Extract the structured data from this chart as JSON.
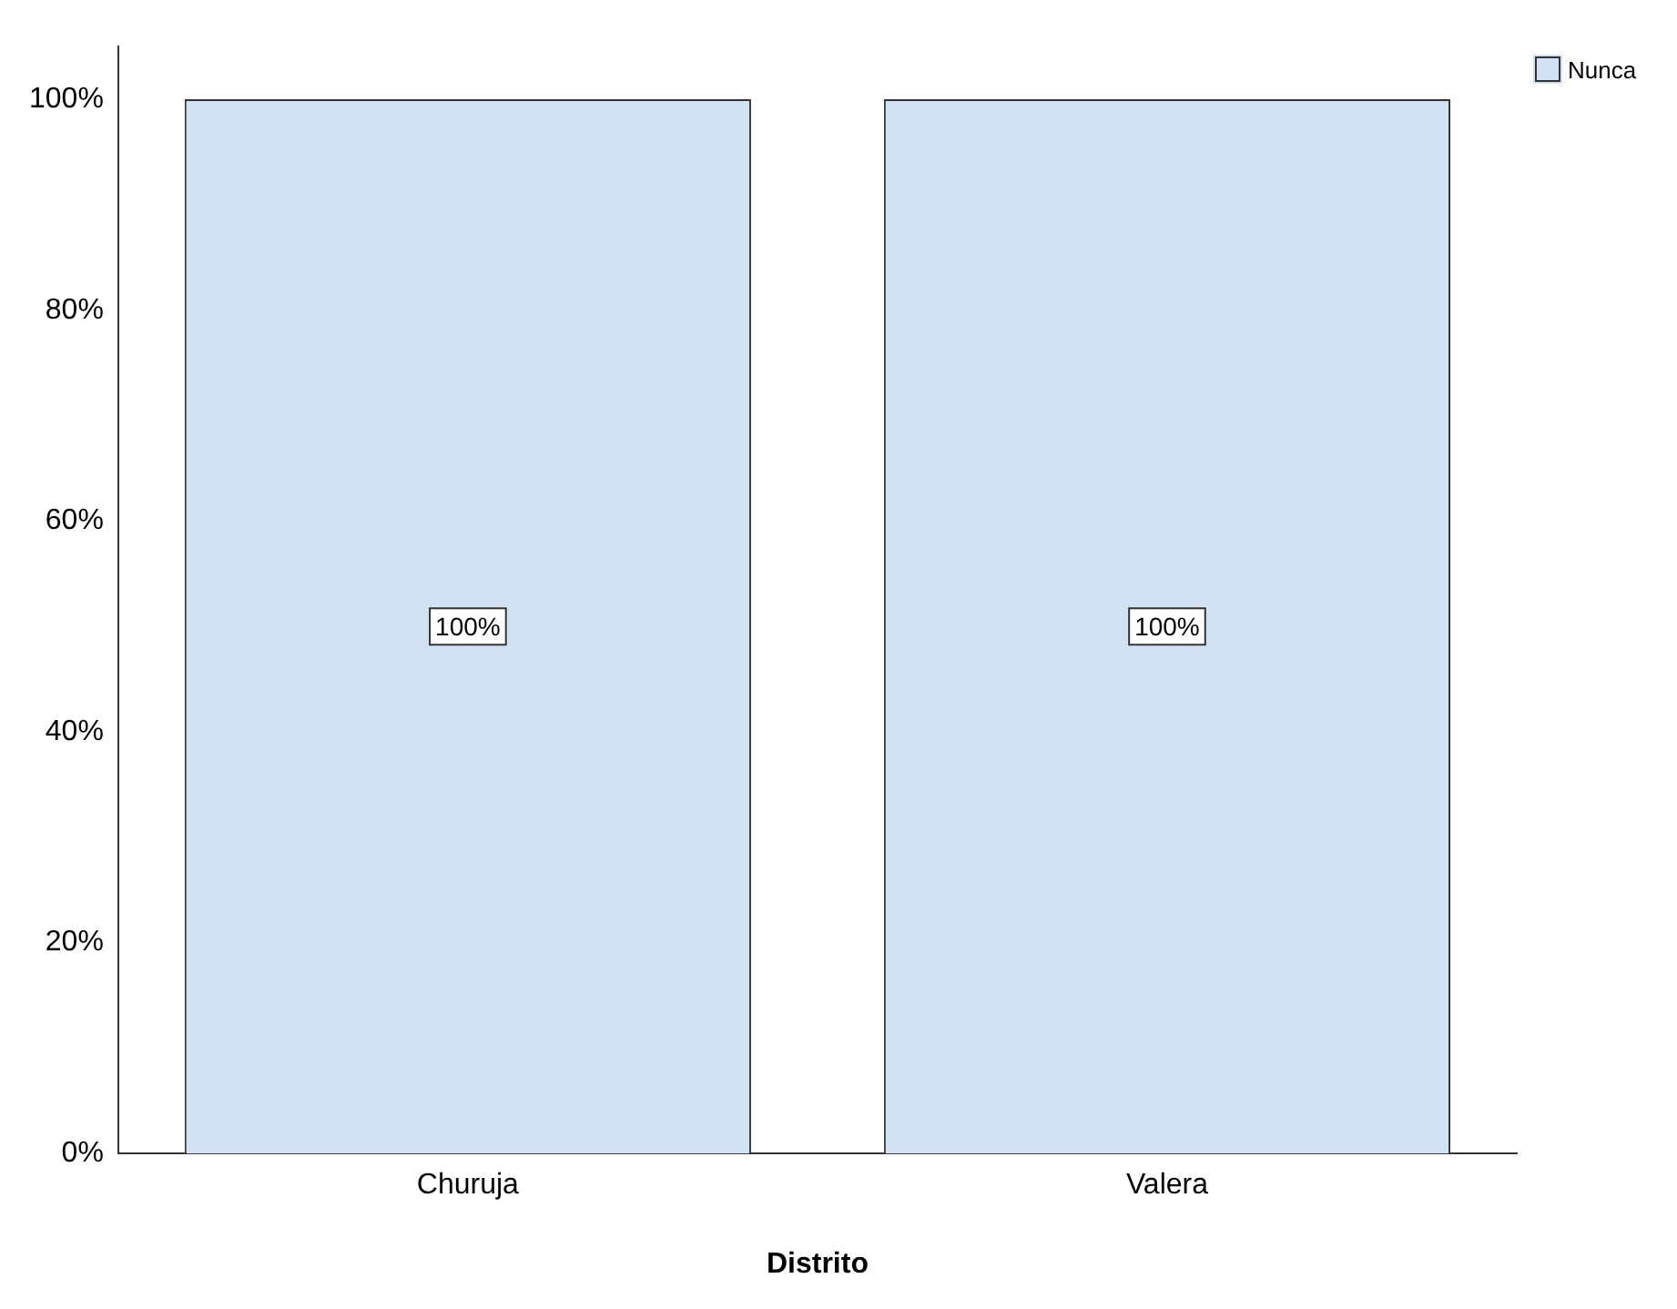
{
  "chart_data": {
    "type": "bar",
    "xlabel": "Distrito",
    "categories": [
      "Churuja",
      "Valera"
    ],
    "series": [
      {
        "name": "Nunca",
        "color": "#d3e2f2",
        "values": [
          100,
          100
        ],
        "value_labels": [
          "100%",
          "100%"
        ]
      }
    ],
    "ylim": [
      0,
      105
    ],
    "yticks": [
      {
        "value": 0,
        "label": "0%"
      },
      {
        "value": 20,
        "label": "20%"
      },
      {
        "value": 40,
        "label": "40%"
      },
      {
        "value": 60,
        "label": "60%"
      },
      {
        "value": 80,
        "label": "80%"
      },
      {
        "value": 100,
        "label": "100%"
      }
    ],
    "grid": false,
    "legend": "top right"
  }
}
